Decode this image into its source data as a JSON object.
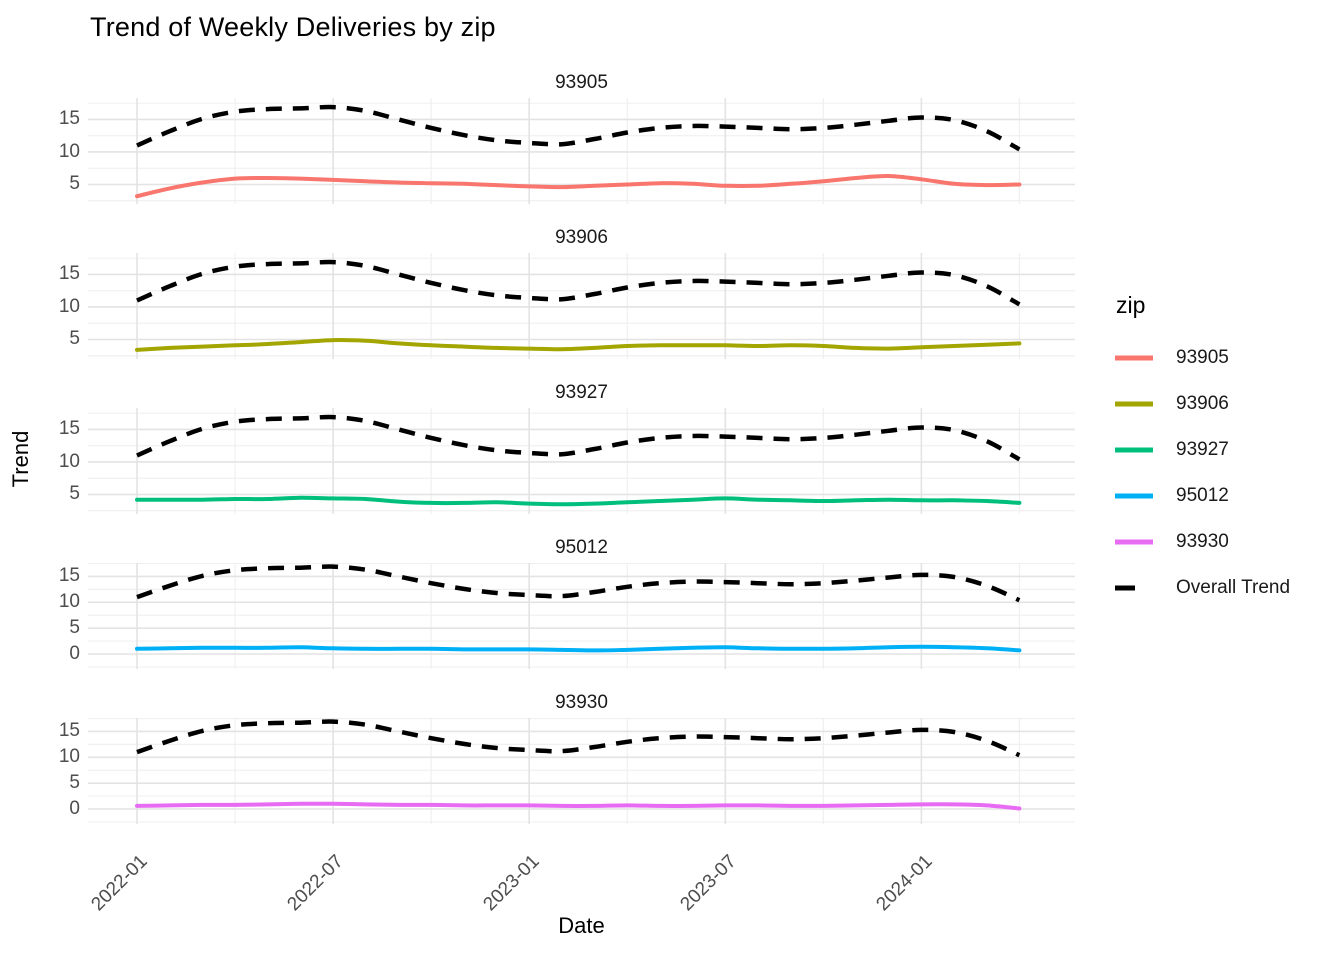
{
  "title": "Trend of Weekly Deliveries by zip",
  "x_axis_title": "Date",
  "y_axis_title": "Trend",
  "legend": {
    "title": "zip",
    "position": "right",
    "entries": [
      {
        "label": "93905",
        "color": "#F8766D",
        "style": "solid"
      },
      {
        "label": "93906",
        "color": "#A3A500",
        "style": "solid"
      },
      {
        "label": "93927",
        "color": "#00BF7D",
        "style": "solid"
      },
      {
        "label": "95012",
        "color": "#00B0F6",
        "style": "solid"
      },
      {
        "label": "93930",
        "color": "#E76BF3",
        "style": "solid"
      },
      {
        "label": "Overall Trend",
        "color": "#000000",
        "style": "dashed"
      }
    ]
  },
  "chart_data": {
    "type": "line",
    "title": "Trend of Weekly Deliveries by zip",
    "xlabel": "Date",
    "ylabel": "Trend",
    "facet_variable": "zip",
    "legend_position": "right",
    "grid": true,
    "x": [
      "2022-01",
      "2022-02",
      "2022-03",
      "2022-04",
      "2022-05",
      "2022-06",
      "2022-07",
      "2022-08",
      "2022-09",
      "2022-10",
      "2022-11",
      "2022-12",
      "2023-01",
      "2023-02",
      "2023-03",
      "2023-04",
      "2023-05",
      "2023-06",
      "2023-07",
      "2023-08",
      "2023-09",
      "2023-10",
      "2023-11",
      "2023-12",
      "2024-01",
      "2024-02",
      "2024-03",
      "2024-04"
    ],
    "x_tick_labels": [
      "2022-01",
      "2022-07",
      "2023-01",
      "2023-07",
      "2024-01"
    ],
    "x_tick_positions": [
      0,
      6,
      12,
      18,
      24
    ],
    "x_minor_positions": [
      3,
      9,
      15,
      21,
      27
    ],
    "x_range": [
      -1.5,
      28.7
    ],
    "facets": [
      {
        "label": "93905",
        "color": "#F8766D",
        "ylim": [
          2.0,
          18.3
        ],
        "y_ticks": [
          5,
          10,
          15
        ],
        "values": [
          3.2,
          4.4,
          5.3,
          5.9,
          6.0,
          5.9,
          5.7,
          5.5,
          5.3,
          5.2,
          5.1,
          4.9,
          4.7,
          4.6,
          4.8,
          5.0,
          5.2,
          5.1,
          4.8,
          4.8,
          5.1,
          5.5,
          6.0,
          6.3,
          5.8,
          5.1,
          4.9,
          5.0
        ]
      },
      {
        "label": "93906",
        "color": "#A3A500",
        "ylim": [
          2.0,
          18.3
        ],
        "y_ticks": [
          5,
          10,
          15
        ],
        "values": [
          3.4,
          3.7,
          3.9,
          4.1,
          4.3,
          4.6,
          4.9,
          4.8,
          4.4,
          4.1,
          3.9,
          3.7,
          3.6,
          3.5,
          3.7,
          4.0,
          4.1,
          4.1,
          4.1,
          4.0,
          4.1,
          4.0,
          3.7,
          3.6,
          3.8,
          4.0,
          4.2,
          4.4
        ]
      },
      {
        "label": "93927",
        "color": "#00BF7D",
        "ylim": [
          2.0,
          18.3
        ],
        "y_ticks": [
          5,
          10,
          15
        ],
        "values": [
          4.2,
          4.2,
          4.2,
          4.3,
          4.3,
          4.5,
          4.4,
          4.3,
          3.9,
          3.7,
          3.7,
          3.8,
          3.6,
          3.5,
          3.6,
          3.8,
          4.0,
          4.2,
          4.4,
          4.2,
          4.1,
          4.0,
          4.1,
          4.2,
          4.1,
          4.1,
          4.0,
          3.7
        ]
      },
      {
        "label": "95012",
        "color": "#00B0F6",
        "ylim": [
          -2.9,
          17.6
        ],
        "y_ticks": [
          0,
          5,
          10,
          15
        ],
        "values": [
          1.0,
          1.1,
          1.2,
          1.2,
          1.2,
          1.3,
          1.1,
          1.0,
          1.0,
          1.0,
          0.9,
          0.9,
          0.9,
          0.8,
          0.7,
          0.8,
          1.0,
          1.2,
          1.3,
          1.1,
          1.0,
          1.0,
          1.1,
          1.3,
          1.4,
          1.3,
          1.1,
          0.7
        ]
      },
      {
        "label": "93930",
        "color": "#E76BF3",
        "ylim": [
          -2.9,
          17.6
        ],
        "y_ticks": [
          0,
          5,
          10,
          15
        ],
        "values": [
          0.6,
          0.7,
          0.8,
          0.8,
          0.9,
          1.0,
          1.0,
          0.9,
          0.8,
          0.8,
          0.7,
          0.7,
          0.7,
          0.6,
          0.6,
          0.7,
          0.6,
          0.6,
          0.7,
          0.7,
          0.6,
          0.6,
          0.7,
          0.8,
          0.9,
          0.9,
          0.7,
          0.1
        ]
      }
    ],
    "overall_trend": {
      "label": "Overall Trend",
      "color": "#000000",
      "style": "dashed",
      "values": [
        11.0,
        13.2,
        15.1,
        16.2,
        16.6,
        16.7,
        16.9,
        16.3,
        15.0,
        13.7,
        12.6,
        11.8,
        11.4,
        11.2,
        12.0,
        13.0,
        13.7,
        14.0,
        13.9,
        13.7,
        13.5,
        13.7,
        14.2,
        14.8,
        15.3,
        14.9,
        13.2,
        10.4
      ]
    },
    "style": {
      "grid_major_color": "#E3E3E3",
      "grid_minor_color": "#F0F0F0",
      "axis_text_color": "#4D4D4D",
      "panel_background": "#FFFFFF"
    }
  }
}
